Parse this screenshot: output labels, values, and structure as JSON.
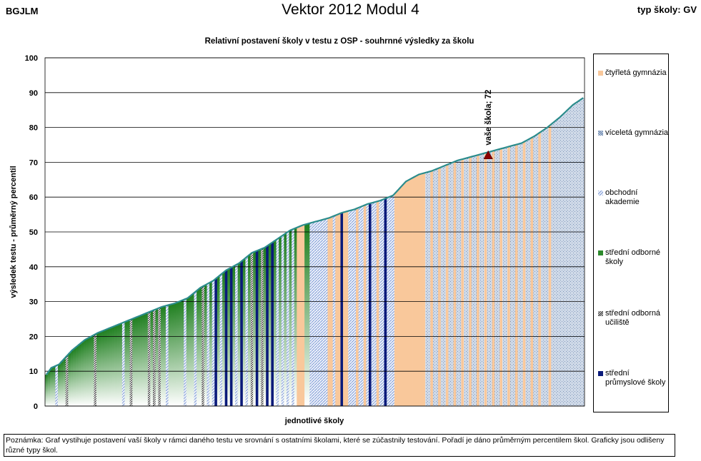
{
  "header": {
    "school_code": "BGJLM",
    "title": "Vektor 2012 Modul 4",
    "school_type": "typ školy: GV"
  },
  "chart_data": {
    "type": "area",
    "title": "Relativní postavení školy v testu z OSP - souhrnné výsledky za školu",
    "xlabel": "jednotlivé školy",
    "ylabel": "výsledek testu - průměrný percentil",
    "ylim": [
      0,
      100
    ],
    "yticks": [
      "0",
      "10",
      "20",
      "30",
      "40",
      "50",
      "60",
      "70",
      "80",
      "90",
      "100"
    ],
    "grid": true,
    "legend_position": "right",
    "n_schools": 210,
    "annotation": {
      "label": "vaše škola; 72",
      "value": 72,
      "school_index": 172
    },
    "series": [
      {
        "key": "ctyrleta",
        "name": "čtyřletá gymnázia",
        "color": "#f9c89b"
      },
      {
        "key": "vicelet",
        "name": "víceletá gymnázia",
        "color": "#7b96b8"
      },
      {
        "key": "obchodni",
        "name": "obchodní akademie",
        "color": "#8ea9dc"
      },
      {
        "key": "sos",
        "name": "střední odborné školy",
        "color": "#2d8a2d"
      },
      {
        "key": "sou",
        "name": "střední odborná učiliště",
        "color": "#333333"
      },
      {
        "key": "sps",
        "name": "střední průmyslové školy",
        "color": "#0a1a7a"
      }
    ],
    "profile": {
      "x": [
        0,
        2,
        5,
        10,
        15,
        20,
        25,
        30,
        35,
        40,
        45,
        50,
        55,
        60,
        65,
        70,
        75,
        80,
        85,
        90,
        95,
        100,
        105,
        110,
        115,
        120,
        125,
        130,
        135,
        140,
        145,
        150,
        155,
        160,
        165,
        170,
        175,
        180,
        185,
        190,
        195,
        200,
        205,
        209
      ],
      "y": [
        9,
        11,
        12,
        16,
        19,
        21,
        22.5,
        24,
        25.5,
        27,
        28.5,
        29.5,
        31,
        34,
        36,
        39,
        41,
        44,
        45.5,
        48,
        50.5,
        52,
        53,
        54,
        55.5,
        56.5,
        58,
        59,
        60.5,
        64.5,
        66.5,
        67.5,
        69,
        70.5,
        71.5,
        72.5,
        73.5,
        74.5,
        75.5,
        77.5,
        80,
        83,
        86.5,
        88.5
      ]
    },
    "categories_by_range": [
      {
        "from": 0,
        "to": 38,
        "type": "sos"
      },
      {
        "from": 39,
        "to": 68,
        "type": "sos"
      },
      {
        "from": 69,
        "to": 100,
        "type": "sos"
      },
      {
        "from": 101,
        "to": 102,
        "type": "sos"
      },
      {
        "from": 103,
        "to": 109,
        "type": "obchodni"
      },
      {
        "from": 110,
        "to": 117,
        "type": "ctyrleta"
      },
      {
        "from": 118,
        "to": 135,
        "type": "obchodni"
      },
      {
        "from": 136,
        "to": 147,
        "type": "ctyrleta"
      },
      {
        "from": 148,
        "to": 209,
        "type": "vicelet"
      }
    ],
    "special_bars": [
      {
        "i": 4,
        "type": "obchodni"
      },
      {
        "i": 8,
        "type": "sou"
      },
      {
        "i": 19,
        "type": "sou"
      },
      {
        "i": 30,
        "type": "obchodni"
      },
      {
        "i": 33,
        "type": "sou"
      },
      {
        "i": 40,
        "type": "sou"
      },
      {
        "i": 42,
        "type": "sou"
      },
      {
        "i": 44,
        "type": "sou"
      },
      {
        "i": 47,
        "type": "obchodni"
      },
      {
        "i": 54,
        "type": "obchodni"
      },
      {
        "i": 58,
        "type": "obchodni"
      },
      {
        "i": 61,
        "type": "sou"
      },
      {
        "i": 63,
        "type": "obchodni"
      },
      {
        "i": 65,
        "type": "obchodni"
      },
      {
        "i": 66,
        "type": "sps"
      },
      {
        "i": 68,
        "type": "obchodni"
      },
      {
        "i": 70,
        "type": "sps"
      },
      {
        "i": 72,
        "type": "sps"
      },
      {
        "i": 74,
        "type": "obchodni"
      },
      {
        "i": 76,
        "type": "sps"
      },
      {
        "i": 78,
        "type": "obchodni"
      },
      {
        "i": 80,
        "type": "sou"
      },
      {
        "i": 82,
        "type": "sps"
      },
      {
        "i": 84,
        "type": "sou"
      },
      {
        "i": 86,
        "type": "sps"
      },
      {
        "i": 88,
        "type": "sps"
      },
      {
        "i": 90,
        "type": "obchodni"
      },
      {
        "i": 92,
        "type": "obchodni"
      },
      {
        "i": 94,
        "type": "obchodni"
      },
      {
        "i": 96,
        "type": "obchodni"
      },
      {
        "i": 98,
        "type": "ctyrleta"
      },
      {
        "i": 99,
        "type": "ctyrleta"
      },
      {
        "i": 100,
        "type": "ctyrleta"
      },
      {
        "i": 112,
        "type": "obchodni"
      },
      {
        "i": 115,
        "type": "sps"
      },
      {
        "i": 121,
        "type": "ctyrleta"
      },
      {
        "i": 124,
        "type": "ctyrleta"
      },
      {
        "i": 126,
        "type": "sps"
      },
      {
        "i": 129,
        "type": "ctyrleta"
      },
      {
        "i": 132,
        "type": "sps"
      },
      {
        "i": 150,
        "type": "ctyrleta"
      },
      {
        "i": 153,
        "type": "ctyrleta"
      },
      {
        "i": 156,
        "type": "ctyrleta"
      },
      {
        "i": 159,
        "type": "ctyrleta"
      },
      {
        "i": 162,
        "type": "ctyrleta"
      },
      {
        "i": 165,
        "type": "ctyrleta"
      },
      {
        "i": 168,
        "type": "ctyrleta"
      },
      {
        "i": 171,
        "type": "ctyrleta"
      },
      {
        "i": 174,
        "type": "ctyrleta"
      },
      {
        "i": 177,
        "type": "ctyrleta"
      },
      {
        "i": 180,
        "type": "ctyrleta"
      },
      {
        "i": 183,
        "type": "ctyrleta"
      },
      {
        "i": 186,
        "type": "ctyrleta"
      },
      {
        "i": 189,
        "type": "ctyrleta"
      },
      {
        "i": 192,
        "type": "ctyrleta"
      },
      {
        "i": 196,
        "type": "ctyrleta"
      }
    ]
  },
  "note": "Poznámka: Graf vystihuje postavení vaší školy v rámci daného testu ve srovnání s ostatními školami, které se zúčastnily testování. Pořadí je dáno průměrným percentilem škol. Graficky jsou odlišeny různé typy škol."
}
